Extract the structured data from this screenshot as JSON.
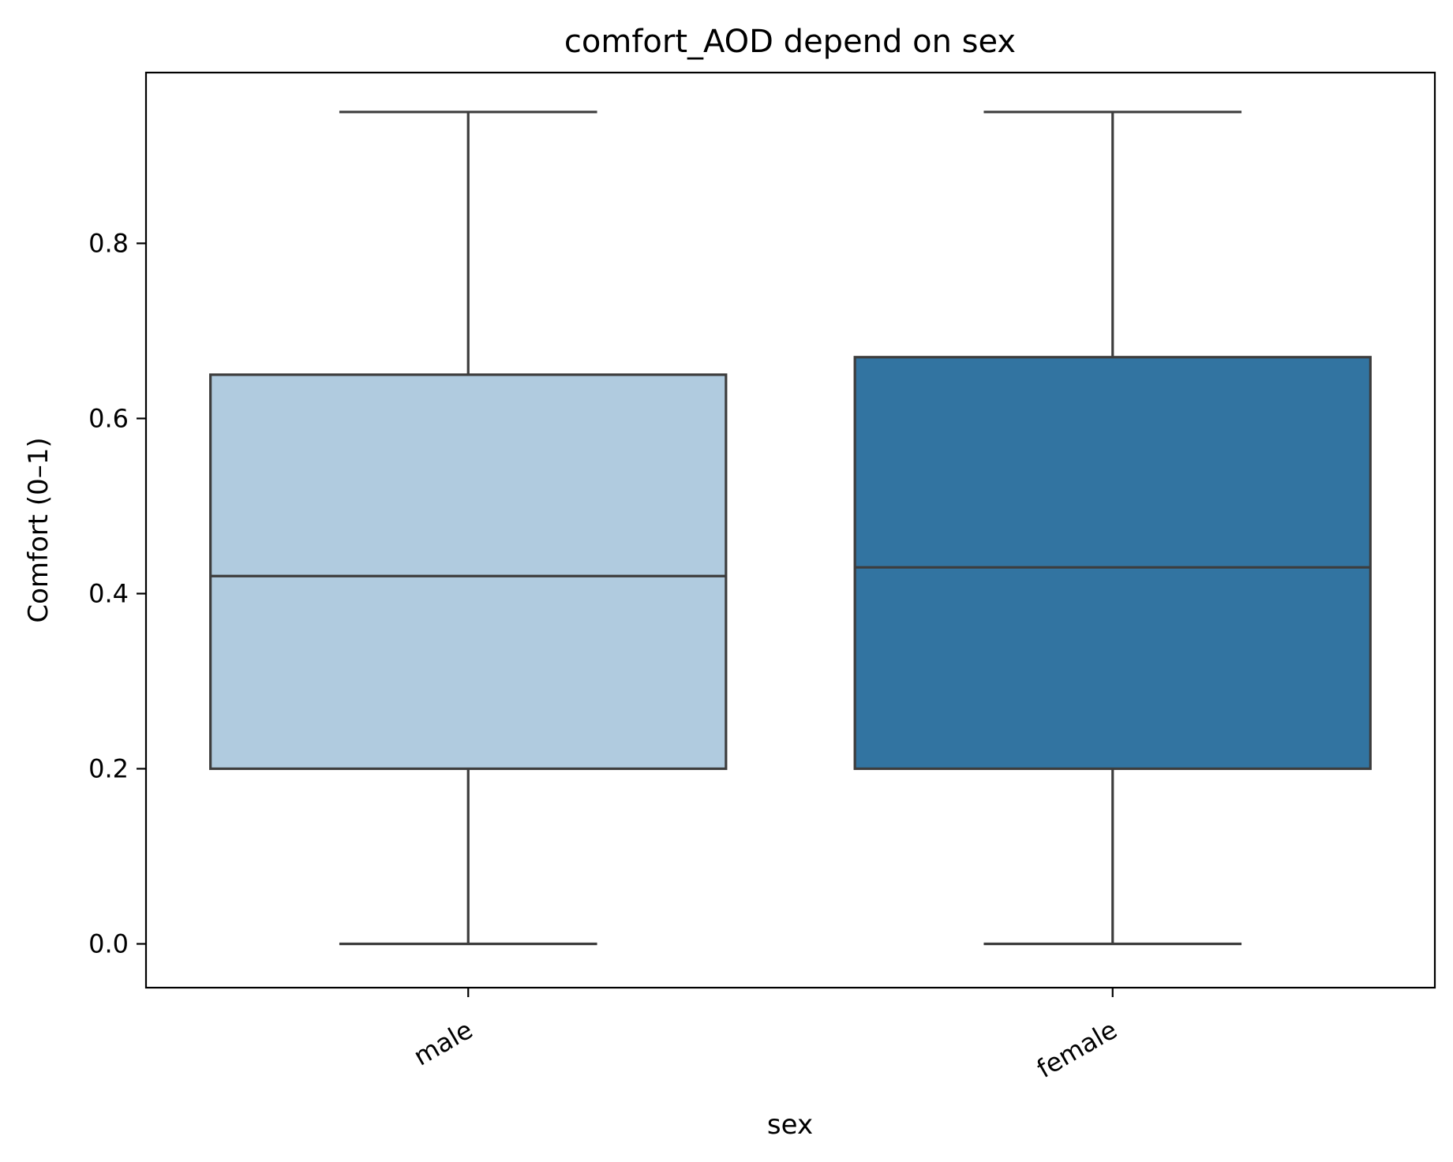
{
  "chart_data": {
    "type": "box",
    "title": "comfort_AOD depend on sex",
    "xlabel": "sex",
    "ylabel": "Comfort (0–1)",
    "ylim": [
      -0.05,
      0.995
    ],
    "yticks": [
      0.0,
      0.2,
      0.4,
      0.6,
      0.8
    ],
    "ytick_labels": [
      "0.0",
      "0.2",
      "0.4",
      "0.6",
      "0.8"
    ],
    "categories": [
      "male",
      "female"
    ],
    "xtick_rotation_deg": 30,
    "grid": false,
    "boxes": [
      {
        "category": "male",
        "min": 0.0,
        "q1": 0.2,
        "median": 0.42,
        "q3": 0.65,
        "max": 0.95,
        "color": "#b0cbdf"
      },
      {
        "category": "female",
        "min": 0.0,
        "q1": 0.2,
        "median": 0.43,
        "q3": 0.67,
        "max": 0.95,
        "color": "#3274a1"
      }
    ],
    "line_color": "#3d3d3d"
  }
}
